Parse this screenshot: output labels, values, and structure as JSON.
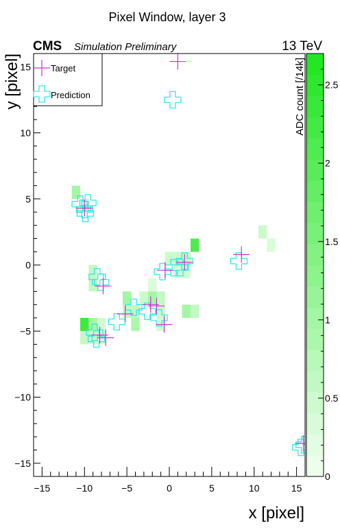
{
  "chart_data": {
    "type": "heatmap",
    "title": "Pixel Window, layer 3",
    "cms_label": "CMS",
    "sim_label": "Simulation Preliminary",
    "energy_label": "13 TeV",
    "xlabel": "x [pixel]",
    "ylabel": "y [pixel]",
    "zlabel": "ADC count [/14k]",
    "xlim": [
      -16,
      16
    ],
    "ylim": [
      -16,
      16
    ],
    "zlim": [
      0,
      2.7
    ],
    "xticks": [
      -15,
      -10,
      -5,
      0,
      5,
      10,
      15
    ],
    "yticks": [
      -15,
      -10,
      -5,
      0,
      5,
      10,
      15
    ],
    "zticks": [
      0,
      0.5,
      1,
      1.5,
      2,
      2.5
    ],
    "colors": {
      "low": "#f2fff2",
      "high": "#1ee61e",
      "target": "#cc33cc",
      "prediction": "#33e6e6"
    },
    "pixels": [
      {
        "x": -11,
        "y": 5.5,
        "v": 1.0
      },
      {
        "x": -9,
        "y": -0.5,
        "v": 0.6
      },
      {
        "x": -9,
        "y": -1.5,
        "v": 0.6
      },
      {
        "x": -10,
        "y": -4.5,
        "v": 2.3
      },
      {
        "x": -9,
        "y": -4.5,
        "v": 1.0
      },
      {
        "x": -8,
        "y": -4.5,
        "v": 0.4
      },
      {
        "x": -10,
        "y": -5.5,
        "v": 0.6
      },
      {
        "x": -9,
        "y": -5.5,
        "v": 0.5
      },
      {
        "x": -8,
        "y": -5.5,
        "v": 0.4
      },
      {
        "x": -5,
        "y": -2.5,
        "v": 1.0
      },
      {
        "x": -5,
        "y": -3.5,
        "v": 0.6
      },
      {
        "x": -4,
        "y": -3.5,
        "v": 0.6
      },
      {
        "x": -4,
        "y": -4.5,
        "v": 0.9
      },
      {
        "x": -3,
        "y": -2.5,
        "v": 0.5
      },
      {
        "x": -2,
        "y": -2.5,
        "v": 1.0
      },
      {
        "x": -1,
        "y": -2.5,
        "v": 0.6
      },
      {
        "x": -2,
        "y": -1.5,
        "v": 0.3
      },
      {
        "x": -1,
        "y": -3.5,
        "v": 0.5
      },
      {
        "x": -1,
        "y": -4.5,
        "v": 0.4
      },
      {
        "x": 0,
        "y": 0.5,
        "v": 0.5
      },
      {
        "x": 1,
        "y": 0.5,
        "v": 0.5
      },
      {
        "x": 1,
        "y": -0.5,
        "v": 0.4
      },
      {
        "x": 2,
        "y": 0.5,
        "v": 0.6
      },
      {
        "x": 2,
        "y": -0.5,
        "v": 0.4
      },
      {
        "x": 3,
        "y": 1.5,
        "v": 2.1
      },
      {
        "x": 2,
        "y": -3.5,
        "v": 1.0
      },
      {
        "x": 3,
        "y": -3.5,
        "v": 0.6
      },
      {
        "x": 11,
        "y": 2.5,
        "v": 0.5
      },
      {
        "x": 12,
        "y": 1.5,
        "v": 0.3
      },
      {
        "x": -10,
        "y": 4.5,
        "v": 0.4
      }
    ],
    "series": [
      {
        "name": "Target",
        "marker": "plus",
        "points": [
          {
            "x": 1.0,
            "y": 15.4
          },
          {
            "x": -10.0,
            "y": 4.3
          },
          {
            "x": 8.5,
            "y": 0.8
          },
          {
            "x": 1.8,
            "y": 0.2
          },
          {
            "x": -0.5,
            "y": -0.4
          },
          {
            "x": -7.8,
            "y": -1.6
          },
          {
            "x": -5.2,
            "y": -3.7
          },
          {
            "x": -2.2,
            "y": -3.0
          },
          {
            "x": -1.5,
            "y": -3.1
          },
          {
            "x": -0.6,
            "y": -4.5
          },
          {
            "x": -8.2,
            "y": -5.3
          },
          {
            "x": -7.5,
            "y": -5.5
          },
          {
            "x": 15.8,
            "y": -13.5
          }
        ]
      },
      {
        "name": "Prediction",
        "marker": "open-cross",
        "points": [
          {
            "x": 0.4,
            "y": 12.5
          },
          {
            "x": -10.5,
            "y": 4.6
          },
          {
            "x": -10.0,
            "y": 4.2
          },
          {
            "x": -9.6,
            "y": 4.7
          },
          {
            "x": -9.9,
            "y": 3.9
          },
          {
            "x": 8.2,
            "y": 0.3
          },
          {
            "x": 1.8,
            "y": 0.3
          },
          {
            "x": 1.3,
            "y": -0.2
          },
          {
            "x": 0.5,
            "y": -0.2
          },
          {
            "x": -0.8,
            "y": -0.5
          },
          {
            "x": -8.5,
            "y": -0.9
          },
          {
            "x": -8.1,
            "y": -1.3
          },
          {
            "x": -4.2,
            "y": -3.2
          },
          {
            "x": -6.2,
            "y": -4.3
          },
          {
            "x": -2.6,
            "y": -3.5
          },
          {
            "x": -1.2,
            "y": -4.0
          },
          {
            "x": -8.6,
            "y": -5.6
          },
          {
            "x": -8.8,
            "y": -5.1
          },
          {
            "x": 15.5,
            "y": -13.8
          },
          {
            "x": 15.9,
            "y": -13.6
          }
        ]
      }
    ],
    "legend": {
      "position": "top-left",
      "entries": [
        "Target",
        "Prediction"
      ]
    }
  }
}
